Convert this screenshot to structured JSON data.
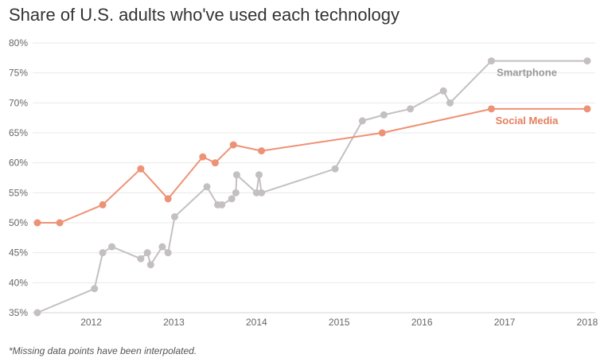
{
  "title": "Share of U.S. adults who've used each technology",
  "footnote": "*Missing data points have been interpolated.",
  "chart_data": {
    "type": "line",
    "title": "Share of U.S. adults who've used each technology",
    "xlabel": "",
    "ylabel": "",
    "xlim": [
      2011.35,
      2018.0
    ],
    "ylim": [
      35,
      80
    ],
    "x_ticks": [
      2012,
      2013,
      2014,
      2015,
      2016,
      2017,
      2018
    ],
    "x_tick_labels": [
      "2012",
      "2013",
      "2014",
      "2015",
      "2016",
      "2017",
      "2018"
    ],
    "y_ticks": [
      35,
      40,
      45,
      50,
      55,
      60,
      65,
      70,
      75,
      80
    ],
    "y_tick_labels": [
      "35%",
      "40%",
      "45%",
      "50%",
      "55%",
      "60%",
      "65%",
      "70%",
      "75%",
      "80%"
    ],
    "grid": true,
    "series": [
      {
        "name": "Smartphone",
        "label": "Smartphone",
        "color": "#c4c0c2",
        "label_color": "#999999",
        "x": [
          2011.35,
          2012.04,
          2012.14,
          2012.25,
          2012.6,
          2012.68,
          2012.72,
          2012.86,
          2012.93,
          2013.01,
          2013.4,
          2013.53,
          2013.58,
          2013.7,
          2013.75,
          2013.76,
          2014.0,
          2014.03,
          2014.06,
          2014.95,
          2015.28,
          2015.54,
          2015.86,
          2016.26,
          2016.34,
          2016.84,
          2018.0
        ],
        "values": [
          35,
          39,
          45,
          46,
          44,
          45,
          43,
          46,
          45,
          51,
          56,
          53,
          53,
          54,
          55,
          58,
          55,
          58,
          55,
          59,
          67,
          68,
          69,
          72,
          70,
          77,
          77
        ]
      },
      {
        "name": "Social Media",
        "label": "Social Media",
        "color": "#ed9275",
        "label_color": "#e4805f",
        "x": [
          2011.35,
          2011.62,
          2012.14,
          2012.6,
          2012.93,
          2013.35,
          2013.5,
          2013.72,
          2014.06,
          2015.52,
          2016.84,
          2018.0
        ],
        "values": [
          50,
          50,
          53,
          59,
          54,
          61,
          60,
          63,
          62,
          65,
          69,
          69
        ]
      }
    ]
  }
}
